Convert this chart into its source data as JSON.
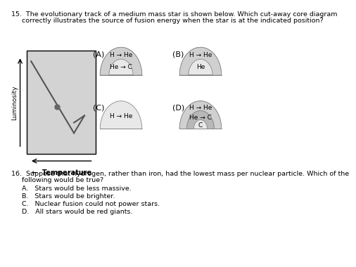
{
  "bg_color": "#ffffff",
  "box_color": "#d3d3d3",
  "text_color": "#000000",
  "label_A": "(A)",
  "label_B": "(B)",
  "label_C": "(C)",
  "label_D": "(D)",
  "A_lines": [
    "H → He",
    "He → C"
  ],
  "B_lines": [
    "H → He",
    "He"
  ],
  "C_lines": [
    "H → He"
  ],
  "D_lines": [
    "H → He",
    "He → C",
    "C"
  ],
  "temp_label": "←  Temperature",
  "lum_label": "Luminosity",
  "q15_line1": "15.  The evolutionary track of a medium mass star is shown below. Which cut-away core diagram",
  "q15_line2": "     correctly illustrates the source of fusion energy when the star is at the indicated position?",
  "q16_line1": "16.  Suppose that hydrogen, rather than iron, had the lowest mass per nuclear particle. Which of the",
  "q16_line2": "     following would be true?",
  "answers16": [
    "A.   Stars would be less massive.",
    "B.   Stars would be brighter.",
    "C.   Nuclear fusion could not power stars.",
    "D.   All stars would be red giants."
  ],
  "c_outer": "#e8e8e8",
  "c_mid": "#d0d0d0",
  "c_inner": "#b8b8b8",
  "radii_A": [
    [
      40,
      "#e8e8e8"
    ],
    [
      23,
      "#d0d0d0"
    ]
  ],
  "radii_B": [
    [
      40,
      "#e8e8e8"
    ],
    [
      23,
      "#d0d0d0"
    ]
  ],
  "radii_C": [
    [
      40,
      "#e8e8e8"
    ]
  ],
  "radii_D": [
    [
      40,
      "#e8e8e8"
    ],
    [
      26,
      "#d0d0d0"
    ],
    [
      13,
      "#b8b8b8"
    ]
  ]
}
